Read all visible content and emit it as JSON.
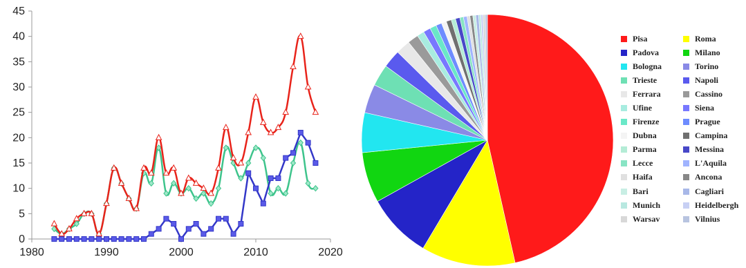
{
  "chart_data": [
    {
      "type": "line",
      "title": "",
      "xlabel": "",
      "ylabel": "",
      "xlim": [
        1980,
        2020
      ],
      "ylim": [
        0,
        45
      ],
      "x_ticks": [
        "1980",
        "1990",
        "2000",
        "2010",
        "2020"
      ],
      "y_ticks": [
        "0",
        "5",
        "10",
        "15",
        "20",
        "25",
        "30",
        "35",
        "40",
        "45"
      ],
      "grid": false,
      "x": [
        1983,
        1984,
        1985,
        1986,
        1987,
        1988,
        1989,
        1990,
        1991,
        1992,
        1993,
        1994,
        1995,
        1996,
        1997,
        1998,
        1999,
        2000,
        2001,
        2002,
        2003,
        2004,
        2005,
        2006,
        2007,
        2008,
        2009,
        2010,
        2011,
        2012,
        2013,
        2014,
        2015,
        2016,
        2017,
        2018
      ],
      "series": [
        {
          "color": "#e8231a",
          "marker": "triangle",
          "values": [
            3,
            1,
            2,
            4,
            5,
            5,
            1,
            7,
            14,
            11,
            8,
            6,
            14,
            13,
            20,
            13,
            14,
            9,
            12,
            11,
            10,
            9,
            14,
            22,
            16,
            15,
            21,
            28,
            23,
            21,
            22,
            25,
            34,
            40,
            30,
            25
          ]
        },
        {
          "color": "#3ec48c",
          "marker": "diamond",
          "values": [
            2,
            1,
            2,
            3,
            5,
            5,
            1,
            7,
            14,
            11,
            8,
            6,
            13,
            11,
            18,
            9,
            11,
            9,
            10,
            8,
            9,
            7,
            10,
            18,
            15,
            12,
            15,
            18,
            16,
            9,
            10,
            9,
            15,
            19,
            11,
            10
          ]
        },
        {
          "color": "#3337c8",
          "marker": "square",
          "values": [
            0,
            0,
            0,
            0,
            0,
            0,
            0,
            0,
            0,
            0,
            0,
            0,
            0,
            1,
            2,
            4,
            3,
            0,
            2,
            3,
            1,
            2,
            4,
            4,
            1,
            3,
            13,
            10,
            7,
            12,
            12,
            16,
            17,
            21,
            19,
            15
          ]
        }
      ]
    },
    {
      "type": "pie",
      "title": "",
      "legend_position": "right",
      "slices": [
        {
          "label": "Pisa",
          "value": 50,
          "color": "#ff1a1a"
        },
        {
          "label": "Roma",
          "value": 13,
          "color": "#ffff00"
        },
        {
          "label": "Padova",
          "value": 9,
          "color": "#2424c8"
        },
        {
          "label": "Milano",
          "value": 7,
          "color": "#11d611"
        },
        {
          "label": "Bologna",
          "value": 5.5,
          "color": "#22e6f0"
        },
        {
          "label": "Torino",
          "value": 4,
          "color": "#8a8ae6"
        },
        {
          "label": "Trieste",
          "value": 3,
          "color": "#6ee0b4"
        },
        {
          "label": "Napoli",
          "value": 2.5,
          "color": "#5a5aee"
        },
        {
          "label": "Ferrara",
          "value": 2,
          "color": "#e8e8e8"
        },
        {
          "label": "Cassino",
          "value": 1.5,
          "color": "#9a9a9a"
        },
        {
          "label": "Ufine",
          "value": 1,
          "color": "#a8ece0"
        },
        {
          "label": "Siena",
          "value": 1,
          "color": "#7878ff"
        },
        {
          "label": "Firenze",
          "value": 0.9,
          "color": "#6ae8c8"
        },
        {
          "label": "Prague",
          "value": 0.8,
          "color": "#6e8cff"
        },
        {
          "label": "Dubna",
          "value": 0.7,
          "color": "#f4f4f4"
        },
        {
          "label": "Campina",
          "value": 0.7,
          "color": "#707070"
        },
        {
          "label": "Parma",
          "value": 0.6,
          "color": "#b4ecd6"
        },
        {
          "label": "Messina",
          "value": 0.6,
          "color": "#4848c8"
        },
        {
          "label": "Lecce",
          "value": 0.5,
          "color": "#88e4c4"
        },
        {
          "label": "L'Aquila",
          "value": 0.5,
          "color": "#a0b4ff"
        },
        {
          "label": "Haifa",
          "value": 0.4,
          "color": "#e0e0e0"
        },
        {
          "label": "Ancona",
          "value": 0.4,
          "color": "#888888"
        },
        {
          "label": "Bari",
          "value": 0.4,
          "color": "#c8eee4"
        },
        {
          "label": "Cagliari",
          "value": 0.4,
          "color": "#a8b8e8"
        },
        {
          "label": "Munich",
          "value": 0.3,
          "color": "#b8e8e0"
        },
        {
          "label": "Heidelbergh",
          "value": 0.3,
          "color": "#c8d0f4"
        },
        {
          "label": "Warsav",
          "value": 0.3,
          "color": "#d8d8d8"
        },
        {
          "label": "Vilnius",
          "value": 0.3,
          "color": "#b8c4e0"
        }
      ]
    }
  ]
}
